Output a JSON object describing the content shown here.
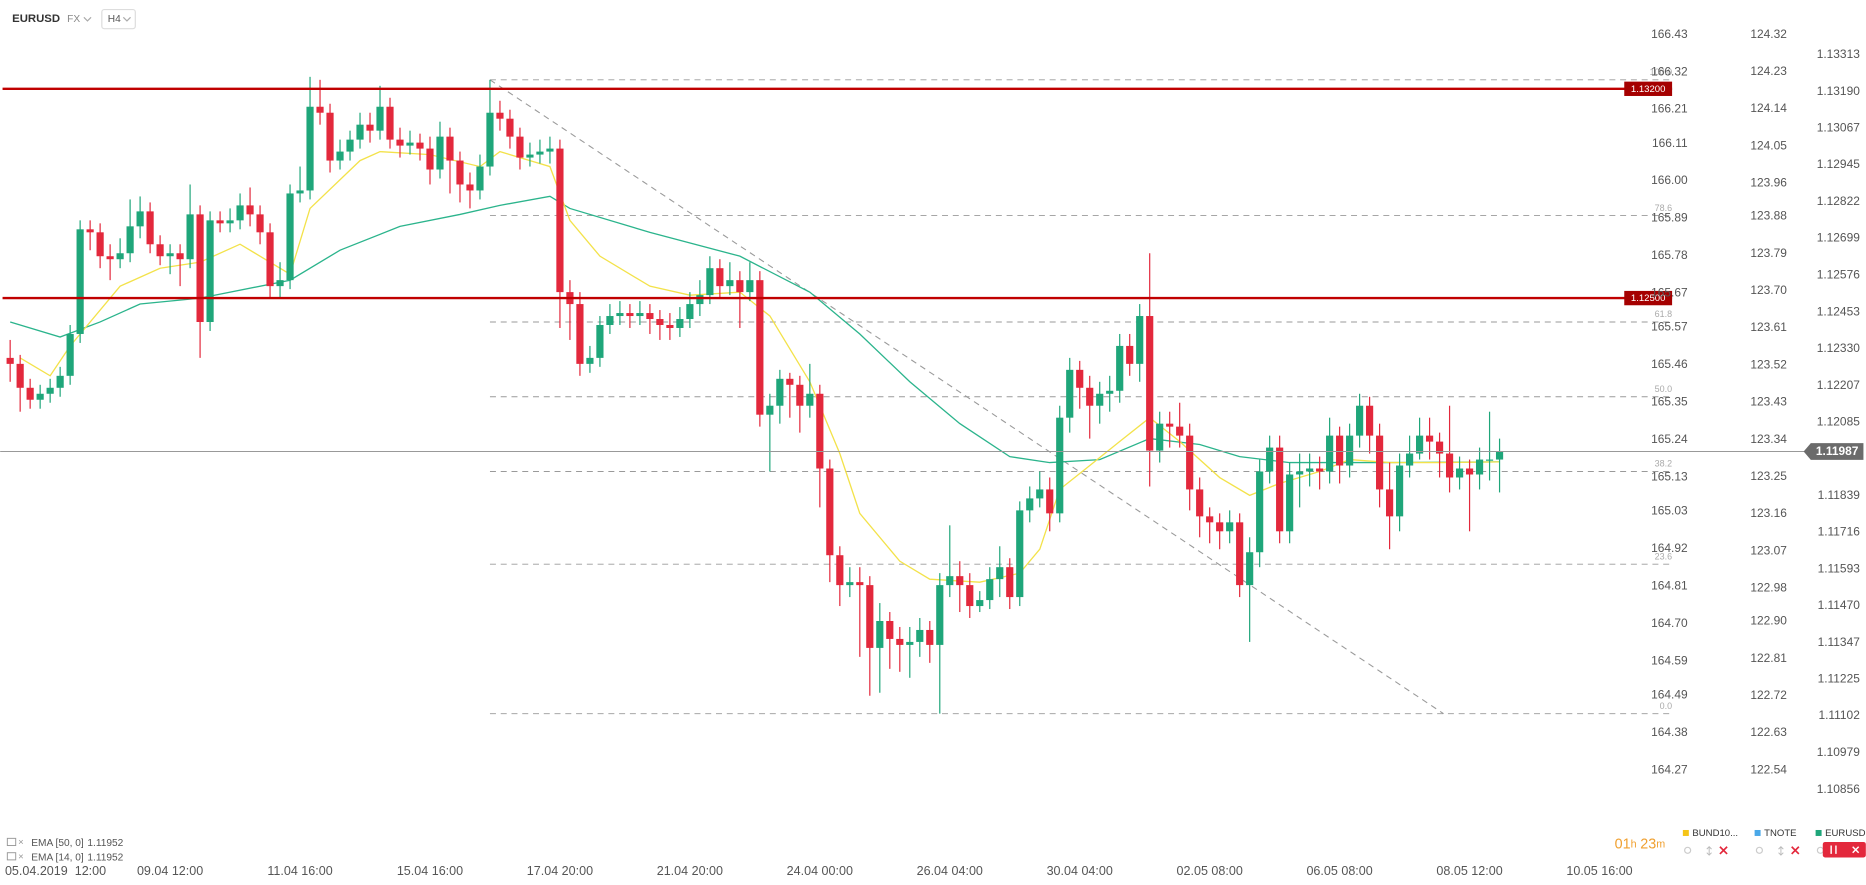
{
  "header": {
    "symbol": "EURUSD",
    "market": "FX",
    "timeframe": "H4"
  },
  "chart_data": {
    "type": "candlestick",
    "up_color": "#1fa67a",
    "down_color": "#e3283c",
    "open": [
      1.123,
      1.1228,
      1.122,
      1.1216,
      1.1218,
      1.122,
      1.1224,
      1.1238,
      1.1273,
      1.1272,
      1.1264,
      1.1263,
      1.1265,
      1.1274,
      1.1279,
      1.1268,
      1.1264,
      1.1265,
      1.1263,
      1.1278,
      1.1242,
      1.1276,
      1.1275,
      1.1276,
      1.1281,
      1.1278,
      1.1272,
      1.1254,
      1.1256,
      1.1285,
      1.1286,
      1.1314,
      1.1312,
      1.1296,
      1.1299,
      1.1303,
      1.1308,
      1.1306,
      1.1314,
      1.1303,
      1.1301,
      1.1302,
      1.13,
      1.1293,
      1.1304,
      1.1296,
      1.1288,
      1.1286,
      1.1294,
      1.1312,
      1.131,
      1.1304,
      1.1297,
      1.1298,
      1.1299,
      1.13,
      1.1252,
      1.1248,
      1.1228,
      1.123,
      1.1241,
      1.1244,
      1.1245,
      1.1244,
      1.1245,
      1.1243,
      1.1241,
      1.124,
      1.1243,
      1.1248,
      1.1251,
      1.126,
      1.1254,
      1.1256,
      1.1252,
      1.1256,
      1.1211,
      1.1214,
      1.1223,
      1.1221,
      1.1214,
      1.1218,
      1.1193,
      1.1164,
      1.1154,
      1.1155,
      1.1154,
      1.1133,
      1.1142,
      1.1136,
      1.1134,
      1.1135,
      1.1139,
      1.1134,
      1.1154,
      1.1157,
      1.1154,
      1.1147,
      1.1149,
      1.1156,
      1.116,
      1.115,
      1.1179,
      1.1183,
      1.1186,
      1.1178,
      1.121,
      1.1226,
      1.122,
      1.1214,
      1.1218,
      1.1219,
      1.1234,
      1.1228,
      1.1244,
      1.1199,
      1.1208,
      1.1207,
      1.1204,
      1.1186,
      1.1177,
      1.1175,
      1.1172,
      1.1175,
      1.1154,
      1.1165,
      1.1192,
      1.12,
      1.1172,
      1.1191,
      1.1192,
      1.1193,
      1.1192,
      1.1204,
      1.1194,
      1.1204,
      1.1214,
      1.1204,
      1.1186,
      1.1177,
      1.1194,
      1.1198,
      1.1204,
      1.1202,
      1.1198,
      1.119,
      1.1193,
      1.1191,
      1.1196,
      1.1196
    ],
    "high": [
      1.1236,
      1.1231,
      1.1223,
      1.1221,
      1.1223,
      1.1227,
      1.1241,
      1.1276,
      1.1276,
      1.1275,
      1.1268,
      1.127,
      1.1283,
      1.1284,
      1.1282,
      1.1271,
      1.1268,
      1.1268,
      1.1288,
      1.1281,
      1.1279,
      1.1279,
      1.128,
      1.1285,
      1.1287,
      1.1281,
      1.1275,
      1.1262,
      1.1288,
      1.1294,
      1.1324,
      1.1323,
      1.1315,
      1.1303,
      1.1306,
      1.1312,
      1.1312,
      1.1321,
      1.1317,
      1.1307,
      1.1306,
      1.1305,
      1.1304,
      1.1309,
      1.1307,
      1.1299,
      1.1292,
      1.1298,
      1.1323,
      1.1316,
      1.1313,
      1.1307,
      1.1302,
      1.1303,
      1.1304,
      1.1303,
      1.1256,
      1.1252,
      1.1234,
      1.1244,
      1.1248,
      1.1249,
      1.1248,
      1.1249,
      1.1248,
      1.1246,
      1.1245,
      1.1247,
      1.1252,
      1.1256,
      1.1264,
      1.1263,
      1.1262,
      1.1259,
      1.1262,
      1.1259,
      1.1218,
      1.1226,
      1.1225,
      1.1224,
      1.1228,
      1.1221,
      1.1196,
      1.1167,
      1.116,
      1.116,
      1.1157,
      1.1148,
      1.1145,
      1.114,
      1.114,
      1.1143,
      1.1142,
      1.1158,
      1.1174,
      1.1162,
      1.1158,
      1.1152,
      1.116,
      1.1167,
      1.1163,
      1.1182,
      1.1187,
      1.1192,
      1.119,
      1.1214,
      1.123,
      1.1229,
      1.1224,
      1.1222,
      1.1224,
      1.1238,
      1.1238,
      1.1248,
      1.1265,
      1.1212,
      1.1212,
      1.1215,
      1.1208,
      1.119,
      1.118,
      1.1178,
      1.1179,
      1.1178,
      1.117,
      1.1196,
      1.1204,
      1.1204,
      1.1195,
      1.1198,
      1.1198,
      1.1197,
      1.121,
      1.1207,
      1.1208,
      1.1218,
      1.1217,
      1.1208,
      1.1195,
      1.1198,
      1.1204,
      1.121,
      1.121,
      1.1205,
      1.1214,
      1.1197,
      1.1196,
      1.12,
      1.1212,
      1.1203
    ],
    "low": [
      1.1222,
      1.1212,
      1.1213,
      1.1213,
      1.1215,
      1.1217,
      1.1221,
      1.1235,
      1.1266,
      1.126,
      1.1256,
      1.126,
      1.1262,
      1.127,
      1.1265,
      1.1261,
      1.1258,
      1.1254,
      1.126,
      1.123,
      1.1239,
      1.1272,
      1.1272,
      1.1273,
      1.1274,
      1.1268,
      1.125,
      1.125,
      1.1253,
      1.1282,
      1.1283,
      1.1308,
      1.1292,
      1.1293,
      1.1296,
      1.13,
      1.1302,
      1.1303,
      1.13,
      1.1297,
      1.1298,
      1.1296,
      1.1288,
      1.129,
      1.1285,
      1.1282,
      1.128,
      1.1283,
      1.1291,
      1.1306,
      1.13,
      1.1293,
      1.1294,
      1.1295,
      1.1295,
      1.124,
      1.1236,
      1.1224,
      1.1225,
      1.1227,
      1.1238,
      1.1241,
      1.124,
      1.1241,
      1.1238,
      1.1236,
      1.1236,
      1.1237,
      1.124,
      1.1244,
      1.1248,
      1.125,
      1.1251,
      1.124,
      1.1249,
      1.1207,
      1.1192,
      1.1208,
      1.121,
      1.1205,
      1.121,
      1.118,
      1.1155,
      1.1147,
      1.115,
      1.113,
      1.1117,
      1.1118,
      1.1126,
      1.1125,
      1.1123,
      1.113,
      1.1128,
      1.1111,
      1.115,
      1.1145,
      1.1143,
      1.1145,
      1.1146,
      1.115,
      1.1146,
      1.1147,
      1.1175,
      1.118,
      1.1172,
      1.1175,
      1.1205,
      1.1213,
      1.1203,
      1.1208,
      1.1212,
      1.1215,
      1.1224,
      1.1222,
      1.1187,
      1.1195,
      1.12,
      1.12,
      1.1179,
      1.117,
      1.1168,
      1.1166,
      1.1168,
      1.115,
      1.1135,
      1.116,
      1.1188,
      1.1168,
      1.1168,
      1.118,
      1.1187,
      1.1186,
      1.1188,
      1.1188,
      1.119,
      1.12,
      1.1198,
      1.118,
      1.1166,
      1.1172,
      1.119,
      1.1196,
      1.1196,
      1.119,
      1.1185,
      1.1186,
      1.1172,
      1.1186,
      1.1189,
      1.1185
    ],
    "close": [
      1.1228,
      1.122,
      1.1216,
      1.1218,
      1.122,
      1.1224,
      1.1238,
      1.1273,
      1.1272,
      1.1264,
      1.1263,
      1.1265,
      1.1274,
      1.1279,
      1.1268,
      1.1264,
      1.1265,
      1.1263,
      1.1278,
      1.1242,
      1.1276,
      1.1275,
      1.1276,
      1.1281,
      1.1278,
      1.1272,
      1.1254,
      1.1256,
      1.1285,
      1.1286,
      1.1314,
      1.1312,
      1.1296,
      1.1299,
      1.1303,
      1.1308,
      1.1306,
      1.1314,
      1.1303,
      1.1301,
      1.1302,
      1.13,
      1.1293,
      1.1304,
      1.1296,
      1.1288,
      1.1286,
      1.1294,
      1.1312,
      1.131,
      1.1304,
      1.1297,
      1.1298,
      1.1299,
      1.13,
      1.1252,
      1.1248,
      1.1228,
      1.123,
      1.1241,
      1.1244,
      1.1245,
      1.1244,
      1.1245,
      1.1243,
      1.1241,
      1.124,
      1.1243,
      1.1248,
      1.1251,
      1.126,
      1.1254,
      1.1256,
      1.1252,
      1.1256,
      1.1211,
      1.1214,
      1.1223,
      1.1221,
      1.1214,
      1.1218,
      1.1193,
      1.1164,
      1.1154,
      1.1155,
      1.1154,
      1.1133,
      1.1142,
      1.1136,
      1.1134,
      1.1135,
      1.1139,
      1.1134,
      1.1154,
      1.1157,
      1.1154,
      1.1147,
      1.1149,
      1.1156,
      1.116,
      1.115,
      1.1179,
      1.1183,
      1.1186,
      1.1178,
      1.121,
      1.1226,
      1.122,
      1.1214,
      1.1218,
      1.1219,
      1.1234,
      1.1228,
      1.1244,
      1.1199,
      1.1208,
      1.1207,
      1.1204,
      1.1186,
      1.1177,
      1.1175,
      1.1172,
      1.1175,
      1.1154,
      1.1165,
      1.1192,
      1.12,
      1.1172,
      1.1191,
      1.1192,
      1.1193,
      1.1192,
      1.1204,
      1.1194,
      1.1204,
      1.1214,
      1.1204,
      1.1186,
      1.1177,
      1.1194,
      1.1198,
      1.1204,
      1.1202,
      1.1198,
      1.119,
      1.1193,
      1.1191,
      1.1196,
      1.1196,
      1.11987
    ],
    "xlim": [
      -1,
      166.5
    ],
    "xticks": [
      {
        "value": 3,
        "label": "05.04.2019  12:00"
      },
      {
        "value": 16,
        "label": "09.04 12:00"
      },
      {
        "value": 29,
        "label": "11.04 16:00"
      },
      {
        "value": 42,
        "label": "15.04 16:00"
      },
      {
        "value": 55,
        "label": "17.04 20:00"
      },
      {
        "value": 68,
        "label": "21.04 20:00"
      },
      {
        "value": 81,
        "label": "24.04 00:00"
      },
      {
        "value": 94,
        "label": "26.04 04:00"
      },
      {
        "value": 107,
        "label": "30.04 04:00"
      },
      {
        "value": 120,
        "label": "02.05 08:00"
      },
      {
        "value": 133,
        "label": "06.05 08:00"
      },
      {
        "value": 146,
        "label": "08.05 12:00"
      },
      {
        "value": 159,
        "label": "10.05 16:00"
      }
    ],
    "ylim": [
      1.10737,
      1.13497
    ],
    "yticks": [
      1.13313,
      {
        "value": 1.1319,
        "label": "1.13190"
      },
      1.13067,
      1.12945,
      1.12822,
      1.12699,
      1.12576,
      1.12453,
      {
        "value": 1.1233,
        "label": "1.12330"
      },
      1.12207,
      1.12085,
      1.11839,
      1.11716,
      1.11593,
      {
        "value": 1.1147,
        "label": "1.11470"
      },
      1.11347,
      1.11225,
      1.11102,
      1.10979,
      1.10856
    ],
    "axes": [
      {
        "name": "BUND10...",
        "color": "#f5c518",
        "lim": [
          164.1084,
          166.5318
        ],
        "ticks": [
          164.27,
          164.38,
          164.49,
          164.59,
          {
            "value": 164.7,
            "label": "164.70"
          },
          164.81,
          164.92,
          165.03,
          165.13,
          165.24,
          165.35,
          165.46,
          165.57,
          165.67,
          165.78,
          165.89,
          {
            "value": 166,
            "label": "166.00"
          },
          166.11,
          166.21,
          166.32,
          166.43
        ]
      },
      {
        "name": "TNOTE",
        "color": "#4aa8e8",
        "lim": [
          122.4069,
          124.4039
        ],
        "ticks": [
          122.54,
          122.63,
          122.72,
          122.81,
          {
            "value": 122.9,
            "label": "122.90"
          },
          122.98,
          123.07,
          123.16,
          123.25,
          123.34,
          123.43,
          123.52,
          123.61,
          {
            "value": 123.7,
            "label": "123.70"
          },
          123.79,
          123.88,
          123.96,
          124.05,
          124.14,
          124.23,
          124.32
        ]
      },
      {
        "name": "EURUSD",
        "color": "#1fa67a"
      }
    ],
    "series": [
      {
        "name": "EMA [50, 0]",
        "color": "#2bb48c",
        "x": [
          0,
          5,
          9,
          13,
          19,
          28,
          33,
          39,
          45,
          49,
          54,
          56,
          64,
          73,
          80,
          85,
          90,
          95,
          100,
          104,
          109,
          114,
          119,
          123,
          128,
          137,
          149
        ],
        "values": [
          1.1242,
          1.1237,
          1.1242,
          1.1248,
          1.125,
          1.1256,
          1.1266,
          1.1274,
          1.1278,
          1.1281,
          1.1284,
          1.128,
          1.1272,
          1.1264,
          1.1252,
          1.1238,
          1.1222,
          1.1208,
          1.1197,
          1.1195,
          1.1196,
          1.1203,
          1.1201,
          1.1197,
          1.1195,
          1.1195,
          1.11952
        ]
      },
      {
        "name": "EMA [14, 0]",
        "color": "#f3e24a",
        "x": [
          1,
          4,
          6,
          11,
          15,
          19,
          23,
          28,
          30,
          35,
          37,
          42,
          47,
          49,
          54,
          56,
          59,
          64,
          68,
          73,
          76,
          80,
          83,
          85,
          89,
          92,
          97,
          101,
          103,
          105,
          108,
          111,
          114,
          117,
          121,
          124,
          127,
          131,
          134,
          138,
          143,
          149
        ],
        "values": [
          1.123,
          1.1224,
          1.1234,
          1.1254,
          1.126,
          1.1262,
          1.1268,
          1.1258,
          1.128,
          1.1296,
          1.1299,
          1.1298,
          1.1294,
          1.1299,
          1.1294,
          1.1276,
          1.1264,
          1.1254,
          1.1251,
          1.1252,
          1.1244,
          1.1222,
          1.1198,
          1.1178,
          1.1162,
          1.1156,
          1.1155,
          1.1158,
          1.1166,
          1.1186,
          1.1194,
          1.1202,
          1.121,
          1.1202,
          1.119,
          1.1184,
          1.1188,
          1.1192,
          1.1196,
          1.1195,
          1.1195,
          1.11952
        ]
      }
    ],
    "levels": [
      {
        "value": 1.132,
        "label": "1.13200"
      },
      {
        "value": 1.125,
        "label": "1.12500"
      }
    ],
    "level_color": "#c00000",
    "fibonacci": {
      "start": 48,
      "levels": [
        {
          "label": "100.0",
          "price": 1.1323
        },
        {
          "label": "78.6",
          "price": 1.12776
        },
        {
          "label": "61.8",
          "price": 1.1242
        },
        {
          "label": "50.0",
          "price": 1.1217
        },
        {
          "label": "38.2",
          "price": 1.1192
        },
        {
          "label": "23.6",
          "price": 1.1161
        },
        {
          "label": "0.0",
          "price": 1.1111
        }
      ]
    },
    "trendline": {
      "x": [
        48,
        143.4
      ],
      "y": [
        1.1323,
        1.1111
      ]
    }
  },
  "countdown": [
    "01",
    "h",
    "23",
    "m"
  ]
}
